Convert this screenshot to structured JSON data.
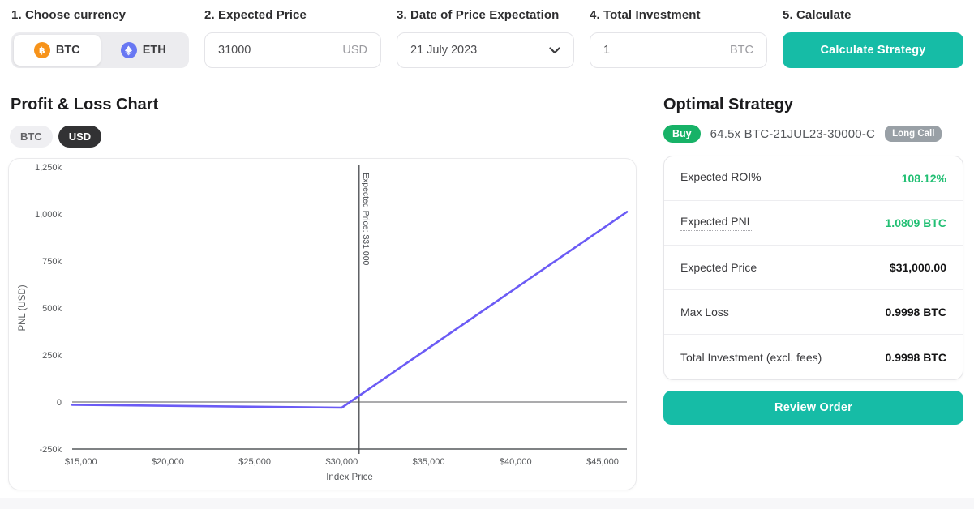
{
  "form": {
    "currency": {
      "label": "1. Choose currency",
      "options": [
        {
          "label": "BTC",
          "icon": "btc-icon",
          "selected": true
        },
        {
          "label": "ETH",
          "icon": "eth-icon",
          "selected": false
        }
      ]
    },
    "expected_price": {
      "label": "2. Expected Price",
      "value": "31000",
      "unit": "USD"
    },
    "expectation_date": {
      "label": "3. Date of Price Expectation",
      "value": "21 July 2023"
    },
    "total_investment": {
      "label": "4. Total Investment",
      "value": "1",
      "unit": "BTC"
    },
    "calculate": {
      "label": "5. Calculate",
      "button": "Calculate Strategy"
    }
  },
  "chart_section": {
    "title": "Profit & Loss Chart",
    "unit_toggle": [
      {
        "label": "BTC",
        "selected": false
      },
      {
        "label": "USD",
        "selected": true
      }
    ]
  },
  "chart_data": {
    "type": "line",
    "title": "Profit & Loss Chart",
    "xlabel": "Index Price",
    "ylabel": "PNL (USD)",
    "xlim": [
      14500,
      46400
    ],
    "ylim": [
      -250000,
      1250000
    ],
    "x_ticks": [
      15000,
      20000,
      25000,
      30000,
      35000,
      40000,
      45000
    ],
    "x_tick_labels": [
      "$15,000",
      "$20,000",
      "$25,000",
      "$30,000",
      "$35,000",
      "$40,000",
      "$45,000"
    ],
    "y_ticks": [
      1250000,
      1000000,
      750000,
      500000,
      250000,
      0,
      -250000
    ],
    "y_tick_labels": [
      "1,250k",
      "1,000k",
      "750k",
      "500k",
      "250k",
      "0",
      "-250k"
    ],
    "grid": false,
    "zero_line": true,
    "series": [
      {
        "name": "PNL",
        "color": "#6b5bf5",
        "points": [
          [
            14500,
            -14499
          ],
          [
            30000,
            -29994
          ],
          [
            46400,
            1011270
          ]
        ]
      }
    ],
    "annotations": {
      "vline": {
        "x": 31000,
        "label": "Expected Price: $31,000",
        "color": "#46484c"
      }
    }
  },
  "strategy": {
    "title": "Optimal Strategy",
    "side_badge": "Buy",
    "instrument": "64.5x BTC-21JUL23-30000-C",
    "type_badge": "Long Call",
    "rows": [
      {
        "label": "Expected ROI%",
        "value": "108.12%",
        "value_color": "green",
        "dotted": true
      },
      {
        "label": "Expected PNL",
        "value": "1.0809 BTC",
        "value_color": "green",
        "dotted": true
      },
      {
        "label": "Expected Price",
        "value": "$31,000.00",
        "value_color": "dark",
        "dotted": false
      },
      {
        "label": "Max Loss",
        "value": "0.9998 BTC",
        "value_color": "dark",
        "dotted": false
      },
      {
        "label": "Total Investment (excl. fees)",
        "value": "0.9998 BTC",
        "value_color": "dark",
        "dotted": false
      }
    ],
    "review_button": "Review Order"
  },
  "colors": {
    "accent_teal": "#16bca6",
    "buy_green": "#17b267",
    "value_green": "#21bf73",
    "line_purple": "#6b5bf5",
    "badge_gray": "#99a0a6",
    "btc_orange": "#f7931a",
    "eth_blue": "#6877f3"
  }
}
